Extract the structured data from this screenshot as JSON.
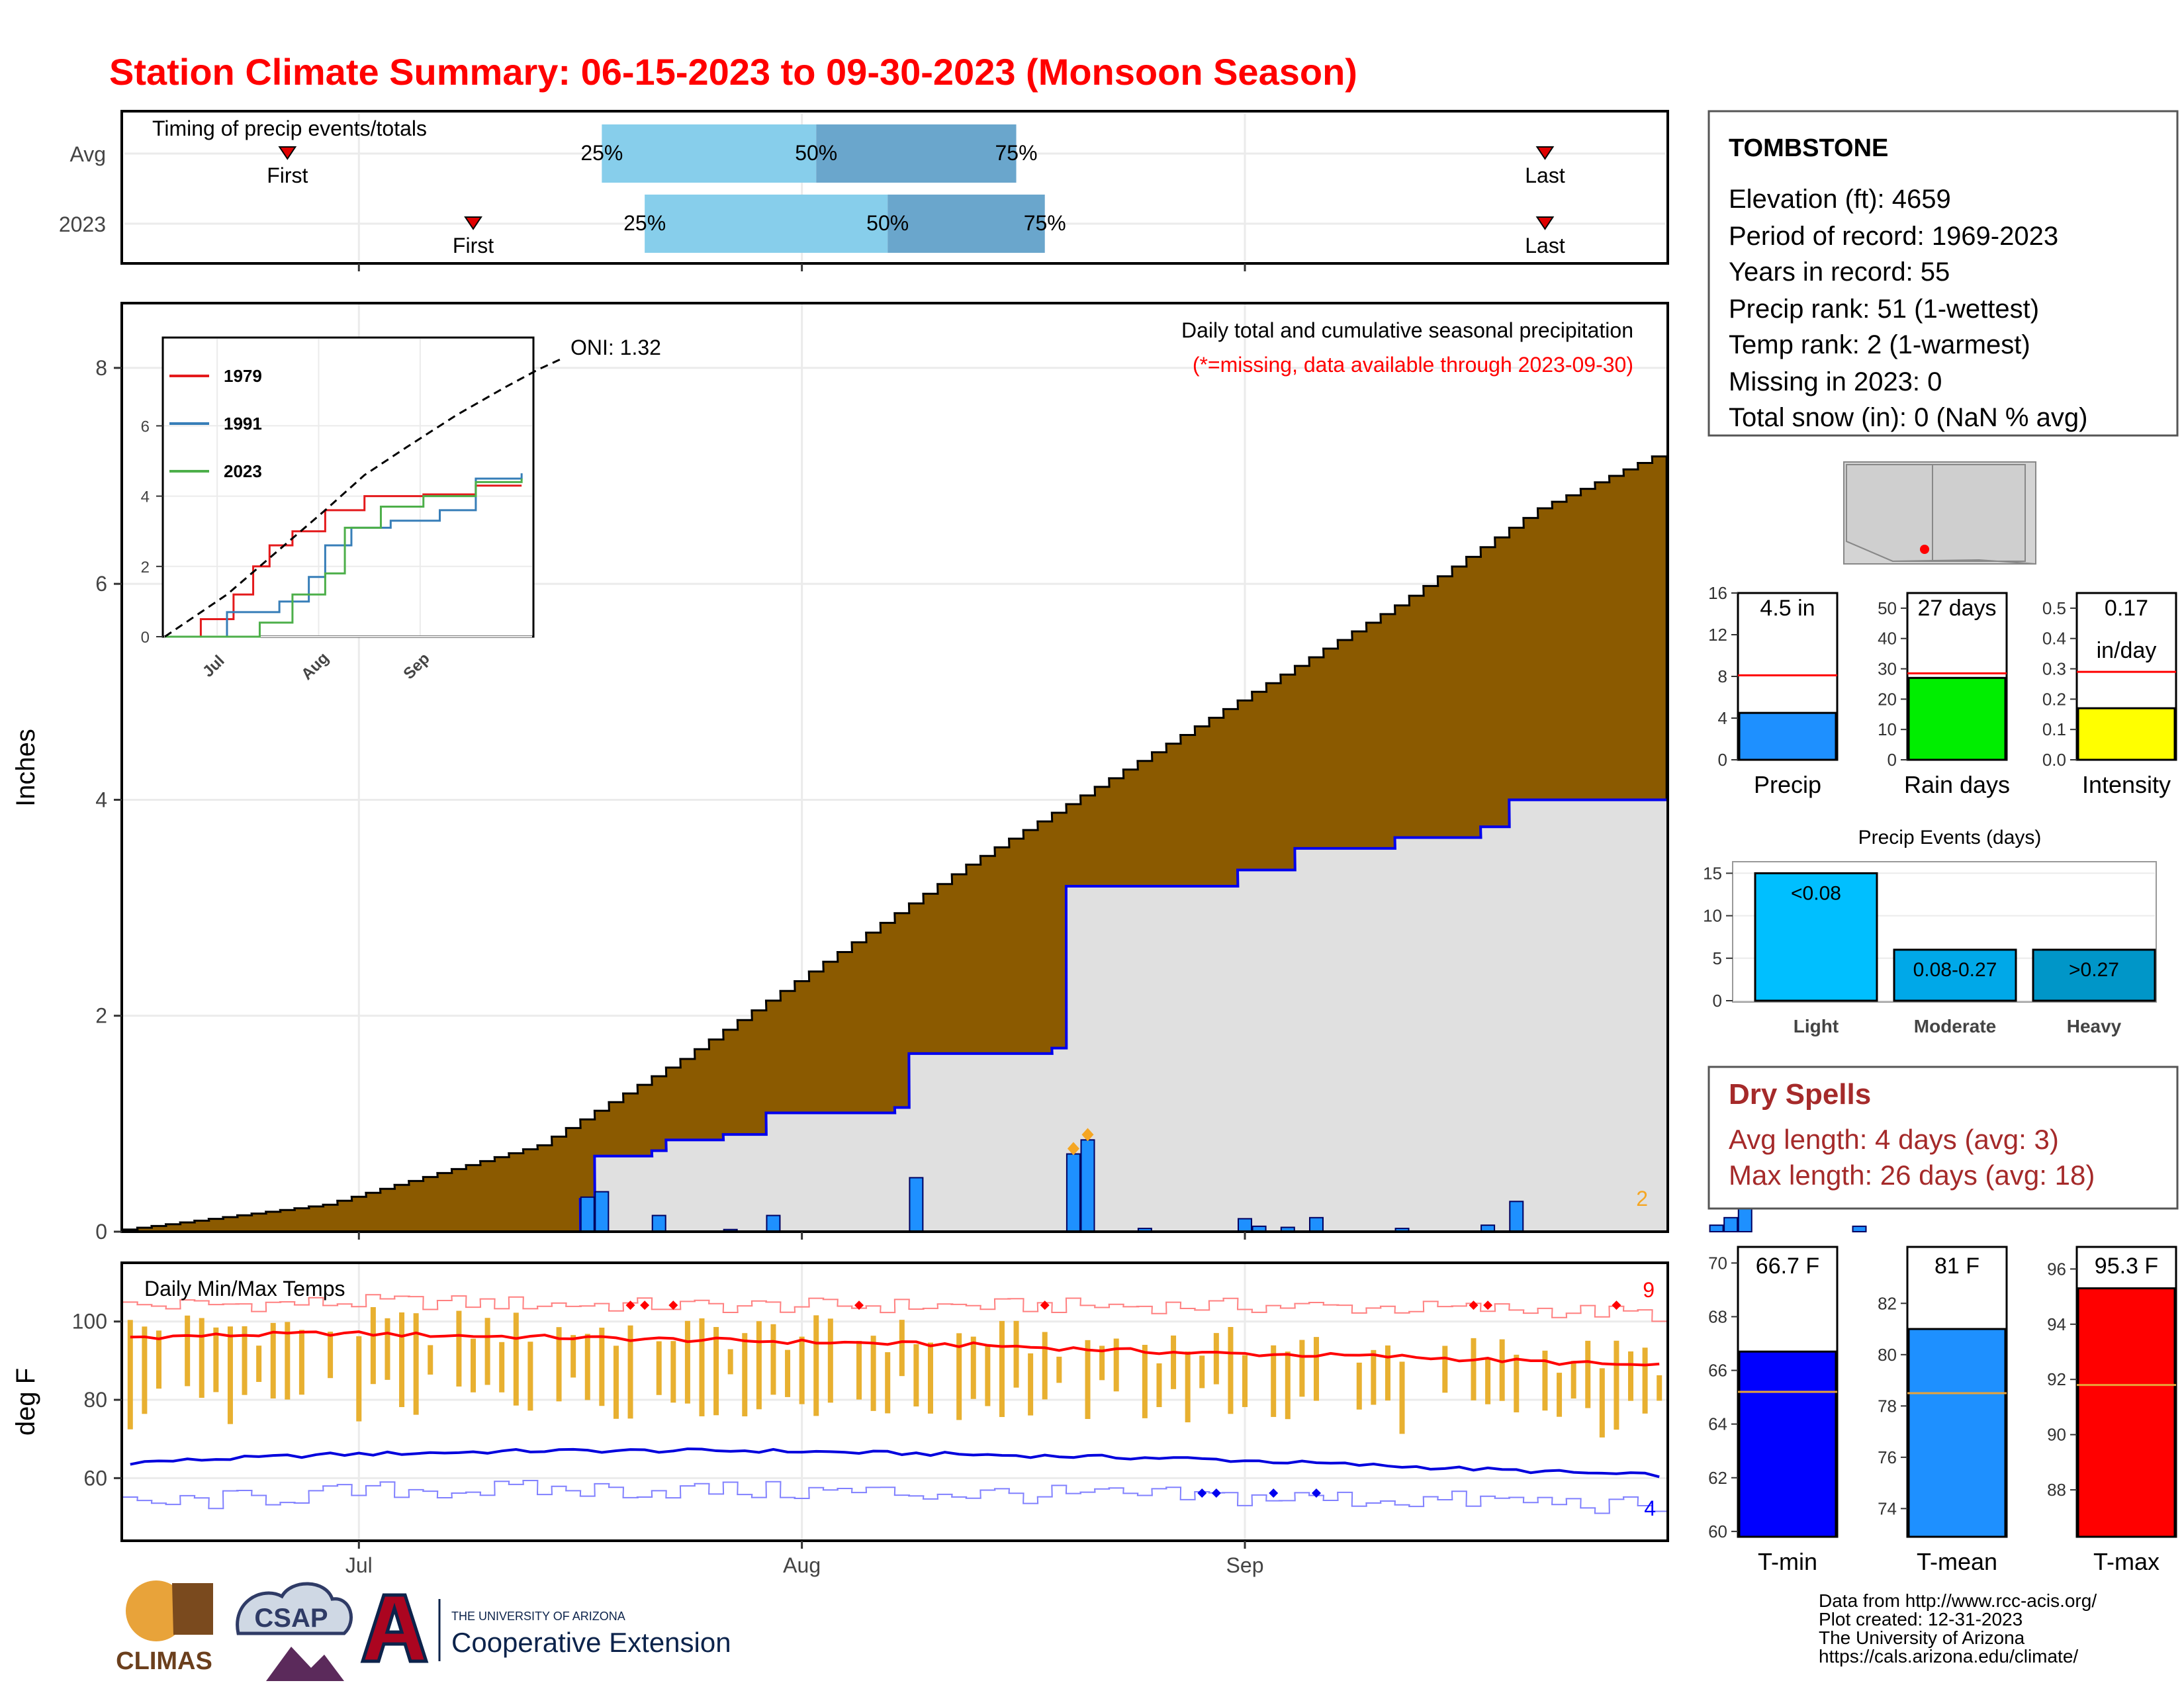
{
  "title": "Station Climate Summary: 06-15-2023 to 09-30-2023 (Monsoon Season)",
  "x_months": [
    "Jul",
    "Aug",
    "Sep"
  ],
  "timing": {
    "title": "Timing of precip events/totals",
    "rows": [
      {
        "label": "Avg",
        "first_label": "First",
        "last_label": "Last",
        "first_date": "06-26",
        "last_date": "09-22",
        "q25_label": "25%",
        "q50_label": "50%",
        "q75_label": "75%",
        "q25_date": "07-18",
        "q50_date": "08-02",
        "q75_date": "08-16"
      },
      {
        "label": "2023",
        "first_label": "First",
        "last_label": "Last",
        "first_date": "07-09",
        "last_date": "09-22",
        "q25_label": "25%",
        "q50_label": "50%",
        "q75_label": "75%",
        "q25_date": "07-21",
        "q50_date": "08-07",
        "q75_date": "08-18"
      }
    ]
  },
  "precip": {
    "title": "Daily total and cumulative seasonal precipitation",
    "note": "(*=missing, data available through 2023-09-30)",
    "oni": "ONI: 1.32",
    "ylabel": "Inches",
    "y_ticks": [
      "0",
      "2",
      "4",
      "6",
      "8"
    ],
    "corner_count": "2",
    "colors": {
      "avg_fill": "#8b5a00",
      "obs_fill": "#e0e0e0",
      "obs_line": "#0000ee",
      "bar": "#1e90ff",
      "extreme": "#f5a623"
    }
  },
  "inset": {
    "y_ticks": [
      "0",
      "2",
      "4",
      "6"
    ],
    "x_ticks": [
      "Jul",
      "Aug",
      "Sep"
    ],
    "legend": [
      "1979",
      "1991",
      "2023"
    ],
    "colors": [
      "#e41a1c",
      "#377eb8",
      "#4daf4a"
    ]
  },
  "temps": {
    "title": "Daily Min/Max Temps",
    "ylabel": "deg F",
    "y_ticks": [
      "60",
      "80",
      "100"
    ],
    "hot_count": "9",
    "cold_count": "4"
  },
  "station": {
    "name": "TOMBSTONE",
    "lines": [
      "Elevation (ft): 4659",
      "Period of record: 1969-2023",
      "Years in record: 55",
      "Precip rank: 51 (1-wettest)",
      "Temp rank: 2 (1-warmest)",
      "Missing in 2023: 0",
      "Total snow (in): 0 (NaN % avg)"
    ]
  },
  "mini_bars": [
    {
      "name": "precip",
      "label": "Precip",
      "value_label": "4.5 in",
      "value": 4.5,
      "avg": 8.1,
      "ymax": 16,
      "ticks": [
        "0",
        "4",
        "8",
        "12",
        "16"
      ],
      "color": "#1e90ff"
    },
    {
      "name": "rain-days",
      "label": "Rain days",
      "value_label": "27 days",
      "value": 27,
      "avg": 28.5,
      "ymax": 55,
      "ticks": [
        "0",
        "10",
        "20",
        "30",
        "40",
        "50"
      ],
      "color": "#00ee00"
    },
    {
      "name": "intensity",
      "label": "Intensity",
      "value_label": "0.17",
      "value_label2": "in/day",
      "value": 0.17,
      "avg": 0.29,
      "ymax": 0.55,
      "ticks": [
        "0.0",
        "0.1",
        "0.2",
        "0.3",
        "0.4",
        "0.5"
      ],
      "color": "#ffff00"
    }
  ],
  "events": {
    "title": "Precip Events (days)",
    "ticks": [
      "0",
      "5",
      "10",
      "15"
    ],
    "bars": [
      {
        "category": "Light",
        "label": "<0.08",
        "value": 15,
        "color": "#00bfff"
      },
      {
        "category": "Moderate",
        "label": "0.08-0.27",
        "value": 6,
        "color": "#00a8e8"
      },
      {
        "category": "Heavy",
        "label": ">0.27",
        "value": 6,
        "color": "#0096c8"
      }
    ]
  },
  "dry_spells": {
    "title": "Dry Spells",
    "avg_line": "Avg length: 4 days (avg: 3)",
    "max_line": "Max length: 26 days (avg: 18)"
  },
  "temp_bars": [
    {
      "name": "t-min",
      "label": "T-min",
      "value_label": "66.7 F",
      "value": 66.7,
      "avg": 65.2,
      "ymin": 59.8,
      "ymax": 70.6,
      "ticks": [
        "60",
        "62",
        "64",
        "66",
        "68",
        "70"
      ],
      "color": "#0000ff"
    },
    {
      "name": "t-mean",
      "label": "T-mean",
      "value_label": "81 F",
      "value": 81.0,
      "avg": 78.5,
      "ymin": 72.9,
      "ymax": 84.2,
      "ticks": [
        "74",
        "76",
        "78",
        "80",
        "82"
      ],
      "color": "#1e90ff"
    },
    {
      "name": "t-max",
      "label": "T-max",
      "value_label": "95.3 F",
      "value": 95.3,
      "avg": 91.8,
      "ymin": 86.3,
      "ymax": 96.8,
      "ticks": [
        "88",
        "90",
        "92",
        "94",
        "96"
      ],
      "color": "#ff0000"
    }
  ],
  "footer": {
    "lines": [
      "Data from http://www.rcc-acis.org/",
      "Plot created: 12-31-2023",
      "The University of Arizona",
      "https://cals.arizona.edu/climate/"
    ],
    "logo_climas": "CLIMAS",
    "logo_csap": "CSAP",
    "ua_line1": "THE UNIVERSITY OF ARIZONA",
    "ua_line2": "Cooperative Extension"
  },
  "chart_data": [
    {
      "type": "area",
      "title": "Daily total and cumulative seasonal precipitation",
      "ylabel": "Inches",
      "ylim": [
        0,
        8.6
      ],
      "cumulative_avg": [
        [
          1,
          0.02
        ],
        [
          15,
          0.25
        ],
        [
          30,
          0.8
        ],
        [
          40,
          1.6
        ],
        [
          50,
          2.5
        ],
        [
          60,
          3.4
        ],
        [
          70,
          4.2
        ],
        [
          80,
          5.0
        ],
        [
          90,
          5.8
        ],
        [
          100,
          6.7
        ],
        [
          110,
          7.3
        ],
        [
          120,
          7.7
        ],
        [
          130,
          7.9
        ]
      ],
      "cumulative_2023": [
        [
          1,
          0.0
        ],
        [
          33,
          0.3
        ],
        [
          34,
          0.7
        ],
        [
          38,
          0.75
        ],
        [
          39,
          0.85
        ],
        [
          43,
          0.9
        ],
        [
          46,
          1.1
        ],
        [
          55,
          1.15
        ],
        [
          56,
          1.65
        ],
        [
          66,
          1.7
        ],
        [
          67,
          3.2
        ],
        [
          79,
          3.35
        ],
        [
          83,
          3.55
        ],
        [
          90,
          3.65
        ],
        [
          96,
          3.75
        ],
        [
          98,
          4.0
        ],
        [
          112,
          4.05
        ],
        [
          114,
          4.4
        ],
        [
          122,
          4.45
        ],
        [
          130,
          4.5
        ]
      ],
      "daily_2023": [
        [
          33,
          0.32
        ],
        [
          34,
          0.37
        ],
        [
          38,
          0.15
        ],
        [
          43,
          0.02
        ],
        [
          46,
          0.15
        ],
        [
          56,
          0.5
        ],
        [
          67,
          0.72
        ],
        [
          68,
          0.85
        ],
        [
          72,
          0.03
        ],
        [
          79,
          0.12
        ],
        [
          80,
          0.05
        ],
        [
          82,
          0.04
        ],
        [
          84,
          0.13
        ],
        [
          90,
          0.03
        ],
        [
          96,
          0.06
        ],
        [
          98,
          0.28
        ],
        [
          112,
          0.06
        ],
        [
          113,
          0.13
        ],
        [
          114,
          0.26
        ],
        [
          122,
          0.05
        ]
      ]
    },
    {
      "type": "line",
      "title": "",
      "x": [
        "Jul",
        "Aug",
        "Sep"
      ],
      "series": [
        {
          "name": "1979",
          "values": [
            [
              1,
              0
            ],
            [
              12,
              0.5
            ],
            [
              22,
              1.2
            ],
            [
              28,
              2.0
            ],
            [
              33,
              2.6
            ],
            [
              40,
              3.0
            ],
            [
              50,
              3.6
            ],
            [
              62,
              4.0
            ],
            [
              80,
              4.05
            ],
            [
              96,
              4.3
            ],
            [
              110,
              4.3
            ]
          ]
        },
        {
          "name": "1991",
          "values": [
            [
              1,
              0
            ],
            [
              20,
              0.7
            ],
            [
              36,
              1.0
            ],
            [
              45,
              1.7
            ],
            [
              50,
              2.6
            ],
            [
              58,
              3.1
            ],
            [
              70,
              3.3
            ],
            [
              85,
              3.6
            ],
            [
              96,
              4.5
            ],
            [
              110,
              4.65
            ]
          ]
        },
        {
          "name": "2023",
          "values": [
            [
              1,
              0
            ],
            [
              30,
              0.4
            ],
            [
              40,
              1.2
            ],
            [
              50,
              1.8
            ],
            [
              56,
              3.1
            ],
            [
              67,
              3.7
            ],
            [
              80,
              4.0
            ],
            [
              96,
              4.4
            ],
            [
              110,
              4.5
            ]
          ]
        },
        {
          "name": "",
          "values": [
            [
              1,
              0
            ],
            [
              20,
              1.2
            ],
            [
              35,
              2.4
            ],
            [
              50,
              3.6
            ],
            [
              62,
              4.6
            ],
            [
              75,
              5.4
            ],
            [
              90,
              6.3
            ],
            [
              105,
              7.1
            ],
            [
              115,
              7.6
            ],
            [
              122,
              7.9
            ]
          ]
        }
      ],
      "ylim": [
        0,
        8
      ]
    },
    {
      "type": "bar",
      "title": "Daily Min/Max Temps",
      "ylabel": "deg F",
      "ylim": [
        44,
        115
      ],
      "avg_max": [
        [
          1,
          96
        ],
        [
          15,
          97
        ],
        [
          30,
          96
        ],
        [
          45,
          95
        ],
        [
          60,
          94
        ],
        [
          75,
          92
        ],
        [
          90,
          91
        ],
        [
          105,
          89
        ],
        [
          120,
          87
        ],
        [
          130,
          86
        ]
      ],
      "avg_min": [
        [
          1,
          64
        ],
        [
          15,
          66
        ],
        [
          30,
          67
        ],
        [
          45,
          67
        ],
        [
          60,
          66
        ],
        [
          75,
          65
        ],
        [
          90,
          63
        ],
        [
          105,
          61
        ],
        [
          120,
          60
        ],
        [
          130,
          59
        ]
      ],
      "record_high": [
        [
          1,
          104
        ],
        [
          20,
          105
        ],
        [
          40,
          104
        ],
        [
          60,
          104
        ],
        [
          80,
          104
        ],
        [
          100,
          103
        ],
        [
          120,
          100
        ],
        [
          130,
          99
        ]
      ],
      "record_low": [
        [
          1,
          53
        ],
        [
          20,
          57
        ],
        [
          40,
          57
        ],
        [
          60,
          56
        ],
        [
          80,
          55
        ],
        [
          100,
          54
        ],
        [
          120,
          50
        ],
        [
          130,
          44
        ]
      ]
    },
    {
      "type": "bar",
      "title": "Precip Events (days)",
      "categories": [
        "Light",
        "Moderate",
        "Heavy"
      ],
      "values": [
        15,
        6,
        6
      ]
    }
  ]
}
